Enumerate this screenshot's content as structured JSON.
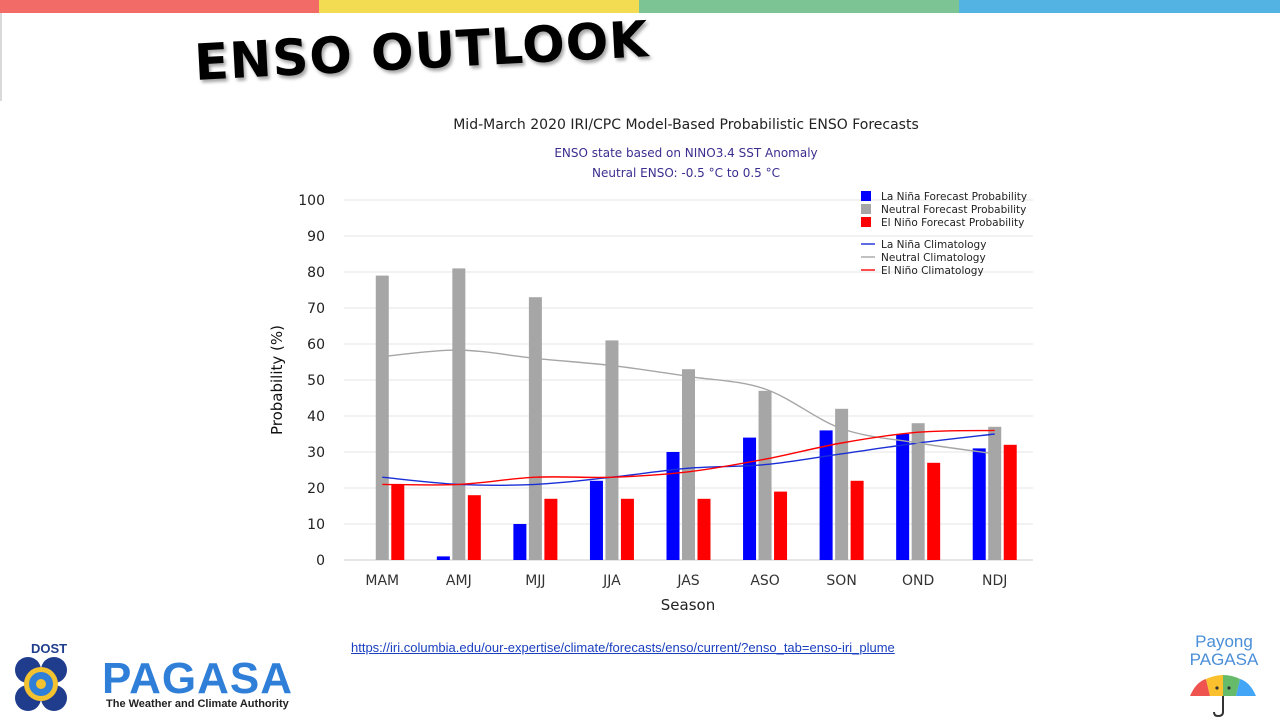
{
  "slide": {
    "title": "ENSO OUTLOOK",
    "source_link": "https://iri.columbia.edu/our-expertise/climate/forecasts/enso/current/?enso_tab=enso-iri_plume",
    "stripe_colors": [
      "#f26b66",
      "#f4dc52",
      "#7cc494",
      "#53b4e4"
    ]
  },
  "logos": {
    "dost_label": "DOST",
    "pagasa_label": "PAGASA",
    "pagasa_tagline": "The Weather and Climate Authority",
    "payong_line1": "Payong",
    "payong_line2": "PAGASA"
  },
  "chart_data": {
    "type": "bar",
    "title": "Mid-March 2020 IRI/CPC Model-Based Probabilistic ENSO Forecasts",
    "subtitle_lines": [
      "ENSO state based on NINO3.4 SST Anomaly",
      "Neutral ENSO: -0.5 °C to 0.5 °C"
    ],
    "xlabel": "Season",
    "ylabel": "Probability (%)",
    "ylim": [
      0,
      100
    ],
    "yticks": [
      0,
      10,
      20,
      30,
      40,
      50,
      60,
      70,
      80,
      90,
      100
    ],
    "grid": true,
    "legend_position": "top-right",
    "categories": [
      "MAM",
      "AMJ",
      "MJJ",
      "JJA",
      "JAS",
      "ASO",
      "SON",
      "OND",
      "NDJ"
    ],
    "series": [
      {
        "name": "La Niña Forecast Probability",
        "color": "#0000ff",
        "values": [
          0,
          1,
          10,
          22,
          30,
          34,
          36,
          35,
          31
        ]
      },
      {
        "name": "Neutral Forecast Probability",
        "color": "#a6a6a6",
        "values": [
          79,
          81,
          73,
          61,
          53,
          47,
          42,
          38,
          37
        ]
      },
      {
        "name": "El Niño Forecast Probability",
        "color": "#ff0000",
        "values": [
          21,
          18,
          17,
          17,
          17,
          19,
          22,
          27,
          32
        ]
      }
    ],
    "lines": [
      {
        "name": "La Niña Climatology",
        "color": "#1a2ed6",
        "values": [
          23,
          21,
          21,
          23,
          25.5,
          26.5,
          29.5,
          32.5,
          35
        ]
      },
      {
        "name": "Neutral Climatology",
        "color": "#a6a6a6",
        "values": [
          56.5,
          58.3,
          56,
          54,
          51,
          47.5,
          36.5,
          32.5,
          29.5
        ]
      },
      {
        "name": "El Niño Climatology",
        "color": "#ff0000",
        "values": [
          21,
          21,
          23,
          23,
          24.5,
          28,
          32.5,
          35.5,
          36
        ]
      }
    ]
  }
}
